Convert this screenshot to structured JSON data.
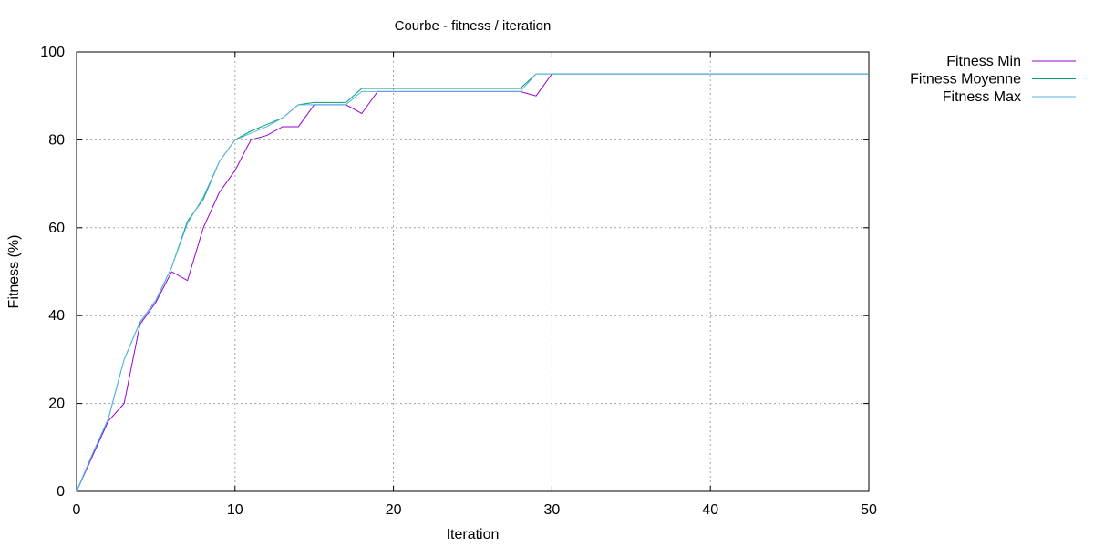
{
  "chart_data": {
    "type": "line",
    "title": "Courbe - fitness / iteration",
    "xlabel": "Iteration",
    "ylabel": "Fitness (%)",
    "xlim": [
      0,
      50
    ],
    "ylim": [
      0,
      100
    ],
    "xticks": [
      0,
      10,
      20,
      30,
      40,
      50
    ],
    "yticks": [
      0,
      20,
      40,
      60,
      80,
      100
    ],
    "grid": true,
    "legend_position": "top-right, outside plot",
    "series": [
      {
        "name": "Fitness Min",
        "color": "#9400d3",
        "x": [
          0,
          1,
          2,
          3,
          4,
          5,
          6,
          7,
          8,
          9,
          10,
          11,
          12,
          13,
          14,
          15,
          16,
          17,
          18,
          19,
          20,
          21,
          22,
          23,
          24,
          25,
          26,
          27,
          28,
          29,
          30,
          31,
          32,
          33,
          34,
          35,
          36,
          37,
          38,
          39,
          40,
          41,
          42,
          43,
          44,
          45,
          46,
          47,
          48,
          49,
          50
        ],
        "values": [
          0,
          8,
          16,
          20,
          38,
          43,
          50,
          48,
          60,
          68,
          73,
          80,
          81,
          83,
          83,
          88,
          88,
          88,
          86,
          91,
          91,
          91,
          91,
          91,
          91,
          91,
          91,
          91,
          91,
          90,
          95,
          95,
          95,
          95,
          95,
          95,
          95,
          95,
          95,
          95,
          95,
          95,
          95,
          95,
          95,
          95,
          95,
          95,
          95,
          95,
          95
        ]
      },
      {
        "name": "Fitness Moyenne",
        "color": "#009e73",
        "x": [
          0,
          1,
          2,
          3,
          4,
          5,
          6,
          7,
          8,
          9,
          10,
          11,
          12,
          13,
          14,
          15,
          16,
          17,
          18,
          19,
          20,
          21,
          22,
          23,
          24,
          25,
          26,
          27,
          28,
          29,
          30,
          31,
          32,
          33,
          34,
          35,
          36,
          37,
          38,
          39,
          40,
          41,
          42,
          43,
          44,
          45,
          46,
          47,
          48,
          49,
          50
        ],
        "values": [
          0,
          8.5,
          16.5,
          30,
          38.5,
          43.5,
          51,
          61.5,
          66.5,
          75,
          80,
          82,
          83.5,
          85,
          88,
          88.5,
          88.5,
          88.5,
          91.7,
          91.7,
          91.7,
          91.7,
          91.7,
          91.7,
          91.7,
          91.7,
          91.7,
          91.7,
          91.7,
          95,
          95,
          95,
          95,
          95,
          95,
          95,
          95,
          95,
          95,
          95,
          95,
          95,
          95,
          95,
          95,
          95,
          95,
          95,
          95,
          95,
          95
        ]
      },
      {
        "name": "Fitness Max",
        "color": "#56b4e9",
        "x": [
          0,
          1,
          2,
          3,
          4,
          5,
          6,
          7,
          8,
          9,
          10,
          11,
          12,
          13,
          14,
          15,
          16,
          17,
          18,
          19,
          20,
          21,
          22,
          23,
          24,
          25,
          26,
          27,
          28,
          29,
          30,
          31,
          32,
          33,
          34,
          35,
          36,
          37,
          38,
          39,
          40,
          41,
          42,
          43,
          44,
          45,
          46,
          47,
          48,
          49,
          50
        ],
        "values": [
          0,
          8.5,
          16.5,
          30,
          38.5,
          43.5,
          51,
          61,
          67,
          75,
          80,
          81.5,
          83,
          85,
          88,
          88,
          88,
          88,
          91,
          91,
          91,
          91,
          91,
          91,
          91,
          91,
          91,
          91,
          91,
          95,
          95,
          95,
          95,
          95,
          95,
          95,
          95,
          95,
          95,
          95,
          95,
          95,
          95,
          95,
          95,
          95,
          95,
          95,
          95,
          95,
          95
        ]
      }
    ]
  }
}
